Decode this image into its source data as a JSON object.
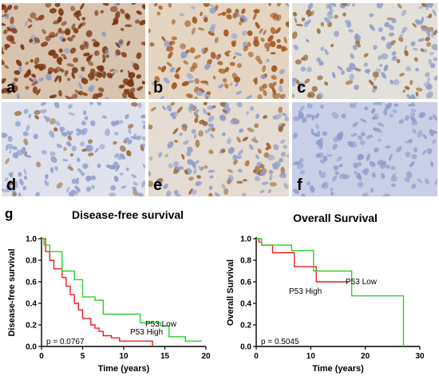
{
  "panels": [
    {
      "label": "a",
      "stain": "strong"
    },
    {
      "label": "b",
      "stain": "moderate"
    },
    {
      "label": "c",
      "stain": "weak"
    },
    {
      "label": "d",
      "stain": "sparse"
    },
    {
      "label": "e",
      "stain": "weak-moderate"
    },
    {
      "label": "f",
      "stain": "negative"
    }
  ],
  "figure_label": "g",
  "colors": {
    "high": "#ee1c1c",
    "low": "#2bd12b",
    "axis": "#000000",
    "hematoxylin": "#8fa0cf",
    "dab": "#8a3e12"
  },
  "chart_data": [
    {
      "type": "line",
      "title": "Disease-free survival",
      "xlabel": "Time (years)",
      "ylabel": "Disease-free survival",
      "xlim": [
        0,
        20
      ],
      "ylim": [
        0,
        1.0
      ],
      "xticks": [
        "0",
        "5",
        "10",
        "15",
        "20"
      ],
      "yticks": [
        "0.0",
        "0.2",
        "0.4",
        "0.6",
        "0.8",
        "1.0"
      ],
      "annotation": "p = 0.0767",
      "series": [
        {
          "name": "P53 High",
          "color_key": "high",
          "x": [
            0,
            0.5,
            1.0,
            1.5,
            2.5,
            3.0,
            3.5,
            4.0,
            4.5,
            5.0,
            6.0,
            6.5,
            7.0,
            7.5,
            8.5,
            9.5,
            13.5,
            13.5
          ],
          "y": [
            1.0,
            0.88,
            0.8,
            0.72,
            0.64,
            0.56,
            0.48,
            0.4,
            0.34,
            0.26,
            0.2,
            0.17,
            0.14,
            0.1,
            0.08,
            0.05,
            0.05,
            0.0
          ]
        },
        {
          "name": "P53 Low",
          "color_key": "low",
          "x": [
            0,
            0.3,
            1.0,
            2.5,
            4.0,
            5.0,
            6.5,
            7.5,
            10.5,
            12.0,
            14.5,
            15.5,
            17.5,
            19.5
          ],
          "y": [
            1.0,
            0.94,
            0.88,
            0.7,
            0.62,
            0.46,
            0.43,
            0.3,
            0.3,
            0.22,
            0.19,
            0.09,
            0.05,
            0.05
          ]
        }
      ]
    },
    {
      "type": "line",
      "title": "Overall Survival",
      "xlabel": "Time (years)",
      "ylabel": "Overall Survival",
      "xlim": [
        0,
        30
      ],
      "ylim": [
        0,
        1.0
      ],
      "xticks": [
        "0",
        "10",
        "20",
        "30"
      ],
      "yticks": [
        "0.0",
        "0.2",
        "0.4",
        "0.6",
        "0.8",
        "1.0"
      ],
      "annotation": "p = 0.5045",
      "series": [
        {
          "name": "P53 High",
          "color_key": "high",
          "x": [
            0,
            0.5,
            1.0,
            3.0,
            7.0,
            11.0,
            17.0
          ],
          "y": [
            1.0,
            0.97,
            0.94,
            0.87,
            0.74,
            0.6,
            0.6
          ]
        },
        {
          "name": "P53 Low",
          "color_key": "low",
          "x": [
            0,
            1.0,
            6.5,
            10.5,
            17.5,
            27.0,
            27.0
          ],
          "y": [
            1.0,
            0.94,
            0.89,
            0.7,
            0.47,
            0.47,
            0.0
          ]
        }
      ]
    }
  ]
}
